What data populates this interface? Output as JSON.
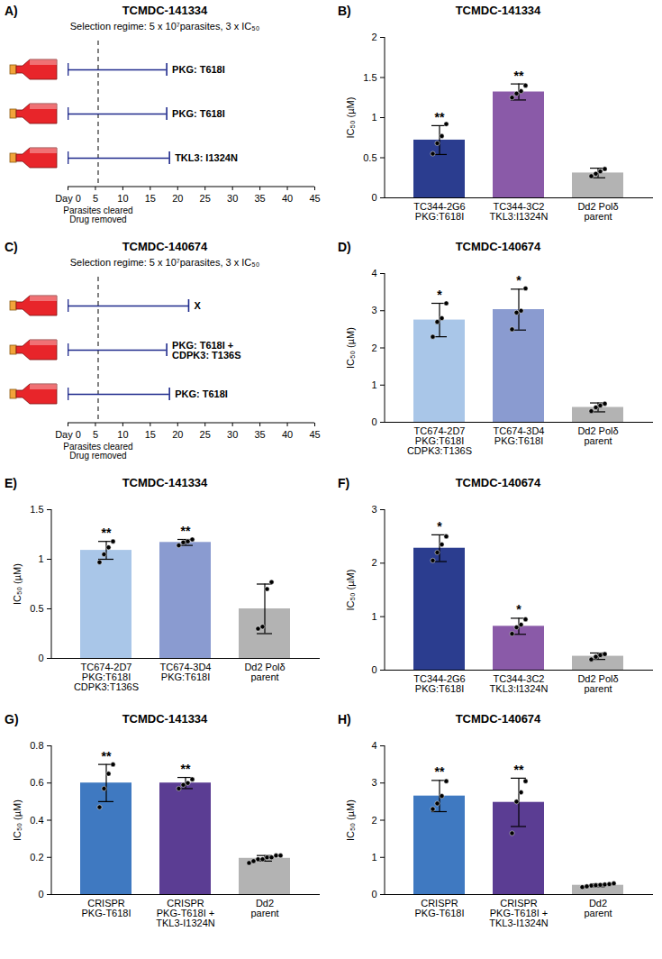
{
  "chart_data": [
    {
      "panel": "A)",
      "type": "timeline",
      "title": "TCMDC-141334",
      "subtitle": "Selection regime: 5 x 10⁷parasites, 3 x IC₅₀",
      "xlim": [
        0,
        45
      ],
      "xticks": [
        {
          "value": 0,
          "label": "Day 0"
        },
        5,
        10,
        15,
        20,
        25,
        30,
        35,
        40,
        45
      ],
      "color": "#1f2a8c",
      "series": [
        {
          "start": 0,
          "end": 18,
          "label": "PKG: T618I"
        },
        {
          "start": 0,
          "end": 18,
          "label": "PKG: T618I"
        },
        {
          "start": 0,
          "end": 18.5,
          "label": "TKL3: I1324N"
        }
      ],
      "annotations": [
        {
          "x": 5.5,
          "text": "Parasites cleared\nDrug removed"
        }
      ]
    },
    {
      "panel": "B)",
      "type": "bar",
      "title": "TCMDC-141334",
      "ylabel": "IC₅₀ (µM)",
      "categories": [
        "TC344-2G6\nPKG:T618I",
        "TC344-3C2\nTKL3:I1324N",
        "Dd2 Polδ\nparent"
      ],
      "values": [
        0.72,
        1.32,
        0.31
      ],
      "error_bars": [
        0.18,
        0.1,
        0.06
      ],
      "points": [
        [
          0.55,
          0.68,
          0.77,
          0.92
        ],
        [
          1.25,
          1.3,
          1.33,
          1.4
        ],
        [
          0.27,
          0.3,
          0.33,
          0.36
        ]
      ],
      "significance": [
        "**",
        "**",
        null
      ],
      "colors": [
        "#2b3d8f",
        "#8a5aa8",
        "#b3b3b3"
      ],
      "ylim": [
        0,
        2
      ],
      "yticks": [
        0,
        0.5,
        1,
        1.5,
        2
      ]
    },
    {
      "panel": "C)",
      "type": "timeline",
      "title": "TCMDC-140674",
      "subtitle": "Selection regime: 5 x 10⁷parasites, 3 x IC₅₀",
      "xlim": [
        0,
        45
      ],
      "xticks": [
        {
          "value": 0,
          "label": "Day 0"
        },
        5,
        10,
        15,
        20,
        25,
        30,
        35,
        40,
        45
      ],
      "color": "#1f2a8c",
      "series": [
        {
          "start": 0,
          "end": 22,
          "label": "X"
        },
        {
          "start": 0,
          "end": 18,
          "label": "PKG: T618I +\nCDPK3: T136S"
        },
        {
          "start": 0,
          "end": 18.5,
          "label": "PKG: T618I"
        }
      ],
      "annotations": [
        {
          "x": 5.5,
          "text": "Parasites cleared\nDrug removed"
        }
      ]
    },
    {
      "panel": "D)",
      "type": "bar",
      "title": "TCMDC-140674",
      "ylabel": "IC₅₀ (µM)",
      "categories": [
        "TC674-2D7\nPKG:T618I\nCDPK3:T136S",
        "TC674-3D4\nPKG:T618I",
        "Dd2 Polδ\nparent"
      ],
      "values": [
        2.75,
        3.03,
        0.4
      ],
      "error_bars": [
        0.45,
        0.55,
        0.12
      ],
      "points": [
        [
          2.3,
          2.7,
          2.8,
          3.2
        ],
        [
          2.5,
          2.95,
          3.0,
          3.6
        ],
        [
          0.3,
          0.4,
          0.45,
          0.5
        ]
      ],
      "significance": [
        "*",
        "*",
        null
      ],
      "colors": [
        "#a9c6e8",
        "#8a9bd0",
        "#b3b3b3"
      ],
      "ylim": [
        0,
        4
      ],
      "yticks": [
        0,
        1,
        2,
        3,
        4
      ]
    },
    {
      "panel": "E)",
      "type": "bar",
      "title": "TCMDC-141334",
      "ylabel": "IC₅₀ (µM)",
      "categories": [
        "TC674-2D7\nPKG:T618I\nCDPK3:T136S",
        "TC674-3D4\nPKG:T618I",
        "Dd2 Polδ\nparent"
      ],
      "values": [
        1.09,
        1.17,
        0.5
      ],
      "error_bars": [
        0.09,
        0.03,
        0.25
      ],
      "points": [
        [
          0.97,
          1.05,
          1.12,
          1.18
        ],
        [
          1.14,
          1.17,
          1.18,
          1.2
        ],
        [
          0.3,
          0.32,
          0.7,
          0.77
        ]
      ],
      "significance": [
        "**",
        "**",
        null
      ],
      "colors": [
        "#a9c6e8",
        "#8a9bd0",
        "#b3b3b3"
      ],
      "ylim": [
        0,
        1.5
      ],
      "yticks": [
        0,
        0.5,
        1,
        1.5
      ]
    },
    {
      "panel": "F)",
      "type": "bar",
      "title": "TCMDC-140674",
      "ylabel": "IC₅₀ (µM)",
      "categories": [
        "TC344-2G6\nPKG:T618I",
        "TC344-3C2\nTKL3:I1324N",
        "Dd2 Polδ\nparent"
      ],
      "values": [
        2.28,
        0.82,
        0.26
      ],
      "error_bars": [
        0.25,
        0.15,
        0.06
      ],
      "points": [
        [
          2.05,
          2.2,
          2.35,
          2.5
        ],
        [
          0.68,
          0.8,
          0.85,
          0.95
        ],
        [
          0.2,
          0.25,
          0.28,
          0.3
        ]
      ],
      "significance": [
        "*",
        "*",
        null
      ],
      "colors": [
        "#2b3d8f",
        "#8a5aa8",
        "#b3b3b3"
      ],
      "ylim": [
        0,
        3
      ],
      "yticks": [
        0,
        1,
        2,
        3
      ]
    },
    {
      "panel": "G)",
      "type": "bar",
      "title": "TCMDC-141334",
      "ylabel": "IC₅₀ (µM)",
      "categories": [
        "CRISPR\nPKG-T618I",
        "CRISPR\nPKG-T618I +\nTKL3-I1324N",
        "Dd2\nparent"
      ],
      "values": [
        0.6,
        0.6,
        0.195
      ],
      "error_bars": [
        0.1,
        0.03,
        0.015
      ],
      "points": [
        [
          0.47,
          0.57,
          0.65,
          0.7
        ],
        [
          0.57,
          0.59,
          0.6,
          0.62
        ],
        [
          0.17,
          0.18,
          0.19,
          0.19,
          0.2,
          0.2,
          0.21,
          0.21
        ]
      ],
      "significance": [
        "**",
        "**",
        null
      ],
      "colors": [
        "#3f79c1",
        "#5b3d93",
        "#b3b3b3"
      ],
      "ylim": [
        0,
        0.8
      ],
      "yticks": [
        0,
        0.2,
        0.4,
        0.6,
        0.8
      ]
    },
    {
      "panel": "H)",
      "type": "bar",
      "title": "TCMDC-140674",
      "ylabel": "IC₅₀ (µM)",
      "categories": [
        "CRISPR\nPKG-T618I",
        "CRISPR\nPKG-T618I +\nTKL3-I1324N",
        "Dd2\nparent"
      ],
      "values": [
        2.65,
        2.48,
        0.25
      ],
      "error_bars": [
        0.42,
        0.65,
        0.04
      ],
      "points": [
        [
          2.3,
          2.45,
          2.65,
          3.05
        ],
        [
          1.65,
          2.5,
          2.75,
          3.05
        ],
        [
          0.2,
          0.22,
          0.24,
          0.25,
          0.26,
          0.27,
          0.28,
          0.3
        ]
      ],
      "significance": [
        "**",
        "**",
        null
      ],
      "colors": [
        "#3f79c1",
        "#5b3d93",
        "#b3b3b3"
      ],
      "ylim": [
        0,
        4
      ],
      "yticks": [
        0,
        1,
        2,
        3,
        4
      ]
    }
  ]
}
